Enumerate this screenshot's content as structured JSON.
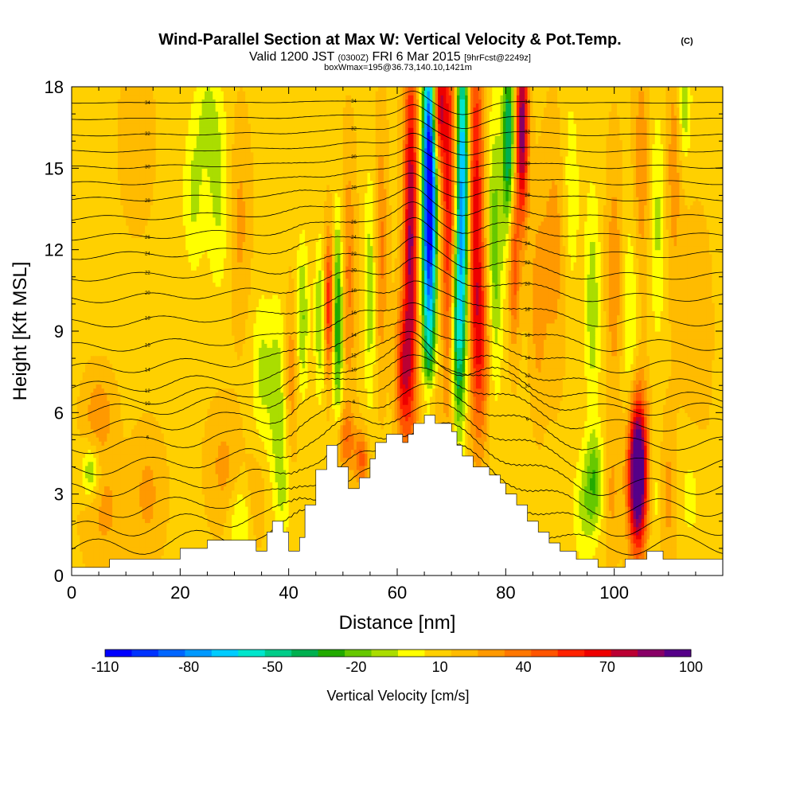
{
  "chart_data": {
    "type": "heatmap",
    "title": "Wind-Parallel Section at Max W: Vertical Velocity & Pot.Temp.",
    "title_mark": "(C)",
    "subtitle": {
      "prefix": "Valid 1200 JST",
      "utc": "(0300Z)",
      "date": "FRI 6 Mar 2015",
      "fcst": "[9hrFcst@2249z]"
    },
    "subtitle2": "boxWmax=195@36.73,140.10,1421m",
    "xlabel": "Distance [nm]",
    "ylabel": "Height [Kft MSL]",
    "xlim": [
      0,
      120
    ],
    "ylim": [
      0,
      18
    ],
    "x_ticks": [
      "0",
      "20",
      "40",
      "60",
      "80",
      "100"
    ],
    "x_tick_values": [
      0,
      20,
      40,
      60,
      80,
      100
    ],
    "y_ticks": [
      "0",
      "3",
      "6",
      "9",
      "12",
      "15",
      "18"
    ],
    "y_tick_values": [
      0,
      3,
      6,
      9,
      12,
      15,
      18
    ],
    "colorbar": {
      "label": "Vertical Velocity [cm/s]",
      "min": -110,
      "max": 100,
      "step": 10,
      "tick_labels": [
        "-110",
        "-80",
        "-50",
        "-20",
        "10",
        "40",
        "70",
        "100"
      ],
      "tick_values": [
        -110,
        -80,
        -50,
        -20,
        10,
        40,
        70,
        100
      ],
      "colors": [
        "#0000ff",
        "#0033ff",
        "#0066ff",
        "#0099ff",
        "#00ccff",
        "#00e6cc",
        "#00cc88",
        "#00b050",
        "#22aa00",
        "#66c800",
        "#aadd00",
        "#ffff00",
        "#ffd000",
        "#ffbb00",
        "#ff9900",
        "#ff7700",
        "#ff5500",
        "#ff2200",
        "#ee0000",
        "#bb0033",
        "#880066",
        "#550088"
      ]
    },
    "terrain_kft": [
      [
        0,
        0.3
      ],
      [
        7,
        0.3
      ],
      [
        7,
        0.6
      ],
      [
        20,
        0.6
      ],
      [
        20,
        1.0
      ],
      [
        25,
        1.0
      ],
      [
        25,
        1.3
      ],
      [
        34,
        1.3
      ],
      [
        34,
        0.9
      ],
      [
        36,
        0.9
      ],
      [
        36,
        1.6
      ],
      [
        37,
        1.6
      ],
      [
        37,
        2.0
      ],
      [
        39,
        2.0
      ],
      [
        39,
        1.6
      ],
      [
        40,
        1.6
      ],
      [
        40,
        0.9
      ],
      [
        42,
        0.9
      ],
      [
        42,
        1.4
      ],
      [
        43,
        1.4
      ],
      [
        43,
        2.6
      ],
      [
        45,
        2.6
      ],
      [
        45,
        3.9
      ],
      [
        47,
        3.9
      ],
      [
        47,
        4.8
      ],
      [
        49,
        4.8
      ],
      [
        49,
        4.0
      ],
      [
        51,
        4.0
      ],
      [
        51,
        3.2
      ],
      [
        53,
        3.2
      ],
      [
        53,
        3.6
      ],
      [
        55,
        3.6
      ],
      [
        55,
        4.3
      ],
      [
        56,
        4.3
      ],
      [
        56,
        4.9
      ],
      [
        58,
        4.9
      ],
      [
        58,
        5.2
      ],
      [
        61,
        5.2
      ],
      [
        61,
        4.9
      ],
      [
        62,
        4.9
      ],
      [
        62,
        5.2
      ],
      [
        63,
        5.2
      ],
      [
        63,
        5.6
      ],
      [
        65,
        5.6
      ],
      [
        65,
        5.9
      ],
      [
        67,
        5.9
      ],
      [
        67,
        5.6
      ],
      [
        70,
        5.6
      ],
      [
        70,
        5.3
      ],
      [
        71,
        5.3
      ],
      [
        71,
        4.8
      ],
      [
        72,
        4.8
      ],
      [
        72,
        4.4
      ],
      [
        74,
        4.4
      ],
      [
        74,
        4.0
      ],
      [
        77,
        4.0
      ],
      [
        77,
        3.7
      ],
      [
        79,
        3.7
      ],
      [
        79,
        3.4
      ],
      [
        80,
        3.4
      ],
      [
        80,
        3.0
      ],
      [
        82,
        3.0
      ],
      [
        82,
        2.6
      ],
      [
        84,
        2.6
      ],
      [
        84,
        2.0
      ],
      [
        86,
        2.0
      ],
      [
        86,
        1.6
      ],
      [
        88,
        1.6
      ],
      [
        88,
        1.2
      ],
      [
        90,
        1.2
      ],
      [
        90,
        0.9
      ],
      [
        93,
        0.9
      ],
      [
        93,
        0.6
      ],
      [
        97,
        0.6
      ],
      [
        97,
        0.3
      ],
      [
        102,
        0.3
      ],
      [
        102,
        0.6
      ],
      [
        106,
        0.6
      ],
      [
        106,
        0.9
      ],
      [
        109,
        0.9
      ],
      [
        109,
        0.6
      ],
      [
        120,
        0.6
      ]
    ],
    "velocity_features": [
      {
        "x": 104.3,
        "y": 3.8,
        "sx": 1.2,
        "sy": 1.9,
        "w": 125
      },
      {
        "x": 62.5,
        "y": 12.5,
        "sx": 0.9,
        "sy": 5.0,
        "w": 75
      },
      {
        "x": 61.0,
        "y": 7.5,
        "sx": 0.9,
        "sy": 1.8,
        "w": 50
      },
      {
        "x": 66.0,
        "y": 15.5,
        "sx": 0.9,
        "sy": 3.5,
        "w": -120
      },
      {
        "x": 67.5,
        "y": 17.3,
        "sx": 0.9,
        "sy": 1.5,
        "w": 70
      },
      {
        "x": 65.8,
        "y": 10.5,
        "sx": 0.9,
        "sy": 3.5,
        "w": -60
      },
      {
        "x": 69.5,
        "y": 14.0,
        "sx": 1.0,
        "sy": 5.0,
        "w": 55
      },
      {
        "x": 72.0,
        "y": 14.5,
        "sx": 0.8,
        "sy": 4.5,
        "w": -95
      },
      {
        "x": 71.0,
        "y": 9.0,
        "sx": 0.8,
        "sy": 2.5,
        "w": -55
      },
      {
        "x": 74.5,
        "y": 14.0,
        "sx": 1.0,
        "sy": 5.0,
        "w": 55
      },
      {
        "x": 75.5,
        "y": 8.5,
        "sx": 1.2,
        "sy": 2.5,
        "w": 35
      },
      {
        "x": 78.0,
        "y": 12.0,
        "sx": 1.0,
        "sy": 3.5,
        "w": -35
      },
      {
        "x": 80.5,
        "y": 16.0,
        "sx": 0.8,
        "sy": 2.5,
        "w": -60
      },
      {
        "x": 83.0,
        "y": 16.5,
        "sx": 0.8,
        "sy": 2.5,
        "w": 80
      },
      {
        "x": 81.5,
        "y": 11.5,
        "sx": 0.7,
        "sy": 2.0,
        "w": 40
      },
      {
        "x": 47.5,
        "y": 10.0,
        "sx": 0.7,
        "sy": 1.8,
        "w": 55
      },
      {
        "x": 49.0,
        "y": 9.5,
        "sx": 0.7,
        "sy": 2.5,
        "w": -55
      },
      {
        "x": 45.8,
        "y": 9.5,
        "sx": 0.7,
        "sy": 2.0,
        "w": -30
      },
      {
        "x": 51.0,
        "y": 11.0,
        "sx": 0.9,
        "sy": 3.0,
        "w": 25
      },
      {
        "x": 55.0,
        "y": 10.5,
        "sx": 0.8,
        "sy": 3.0,
        "w": -25
      },
      {
        "x": 57.0,
        "y": 12.0,
        "sx": 0.8,
        "sy": 3.0,
        "w": 25
      },
      {
        "x": 42.5,
        "y": 9.5,
        "sx": 0.8,
        "sy": 2.0,
        "w": -30
      },
      {
        "x": 40.5,
        "y": 7.5,
        "sx": 0.9,
        "sy": 2.0,
        "w": 20
      },
      {
        "x": 38.0,
        "y": 6.5,
        "sx": 1.2,
        "sy": 2.5,
        "w": -25
      },
      {
        "x": 35.0,
        "y": 7.5,
        "sx": 1.3,
        "sy": 2.0,
        "w": -20
      },
      {
        "x": 27.0,
        "y": 14.0,
        "sx": 1.5,
        "sy": 2.5,
        "w": -20
      },
      {
        "x": 31.0,
        "y": 13.0,
        "sx": 1.3,
        "sy": 2.5,
        "w": 15
      },
      {
        "x": 22.5,
        "y": 14.0,
        "sx": 1.4,
        "sy": 2.0,
        "w": -20
      },
      {
        "x": 25.0,
        "y": 17.0,
        "sx": 1.5,
        "sy": 1.5,
        "w": -18
      },
      {
        "x": 3.5,
        "y": 3.8,
        "sx": 1.2,
        "sy": 0.7,
        "w": -30
      },
      {
        "x": 5.0,
        "y": 6.0,
        "sx": 1.8,
        "sy": 1.0,
        "w": 20
      },
      {
        "x": 6.0,
        "y": 2.5,
        "sx": 2.5,
        "sy": 1.5,
        "w": 15
      },
      {
        "x": 14.0,
        "y": 3.0,
        "sx": 2.0,
        "sy": 1.5,
        "w": 15
      },
      {
        "x": 28.0,
        "y": 4.0,
        "sx": 2.0,
        "sy": 1.5,
        "w": 15
      },
      {
        "x": 31.0,
        "y": 2.0,
        "sx": 1.5,
        "sy": 1.0,
        "w": -20
      },
      {
        "x": 34.0,
        "y": 3.0,
        "sx": 1.2,
        "sy": 1.2,
        "w": 12
      },
      {
        "x": 39.0,
        "y": 3.0,
        "sx": 1.0,
        "sy": 1.2,
        "w": -15
      },
      {
        "x": 50.5,
        "y": 5.0,
        "sx": 1.2,
        "sy": 0.8,
        "w": 30
      },
      {
        "x": 53.5,
        "y": 4.3,
        "sx": 0.9,
        "sy": 0.7,
        "w": 35
      },
      {
        "x": 66.0,
        "y": 6.5,
        "sx": 1.2,
        "sy": 0.7,
        "w": 25
      },
      {
        "x": 96.5,
        "y": 3.5,
        "sx": 1.2,
        "sy": 1.2,
        "w": -30
      },
      {
        "x": 94.5,
        "y": 2.5,
        "sx": 1.5,
        "sy": 1.5,
        "w": -20
      },
      {
        "x": 99.5,
        "y": 3.0,
        "sx": 1.0,
        "sy": 1.5,
        "w": 15
      },
      {
        "x": 107.5,
        "y": 3.0,
        "sx": 0.8,
        "sy": 1.8,
        "w": -12
      },
      {
        "x": 110.0,
        "y": 3.0,
        "sx": 1.0,
        "sy": 2.0,
        "w": 15
      },
      {
        "x": 114.0,
        "y": 3.0,
        "sx": 1.5,
        "sy": 1.5,
        "w": -12
      },
      {
        "x": 96.0,
        "y": 10.0,
        "sx": 1.0,
        "sy": 3.0,
        "w": -25
      },
      {
        "x": 100.0,
        "y": 11.0,
        "sx": 1.0,
        "sy": 3.0,
        "w": 20
      },
      {
        "x": 103.0,
        "y": 9.0,
        "sx": 1.0,
        "sy": 3.0,
        "w": -20
      },
      {
        "x": 105.0,
        "y": 15.0,
        "sx": 1.0,
        "sy": 3.0,
        "w": 20
      },
      {
        "x": 108.0,
        "y": 13.0,
        "sx": 1.0,
        "sy": 3.0,
        "w": -20
      },
      {
        "x": 111.0,
        "y": 15.0,
        "sx": 1.0,
        "sy": 3.0,
        "w": 18
      },
      {
        "x": 113.0,
        "y": 17.5,
        "sx": 0.8,
        "sy": 1.5,
        "w": -28
      },
      {
        "x": 89.0,
        "y": 12.0,
        "sx": 1.5,
        "sy": 3.0,
        "w": 18
      },
      {
        "x": 92.0,
        "y": 14.0,
        "sx": 1.2,
        "sy": 3.0,
        "w": -15
      },
      {
        "x": 86.0,
        "y": 10.0,
        "sx": 1.0,
        "sy": 2.5,
        "w": 18
      },
      {
        "x": 12.0,
        "y": 16.0,
        "sx": 2.0,
        "sy": 2.0,
        "w": 10
      },
      {
        "x": 115.0,
        "y": 9.0,
        "sx": 2.0,
        "sy": 3.0,
        "w": 8
      }
    ],
    "theta_levels": [
      {
        "base": 0.8,
        "label": ""
      },
      {
        "base": 1.5,
        "label": ""
      },
      {
        "base": 2.2,
        "label": ""
      },
      {
        "base": 3.0,
        "label": ""
      },
      {
        "base": 3.8,
        "label": ""
      },
      {
        "base": 4.6,
        "label": "6"
      },
      {
        "base": 5.3,
        "label": ""
      },
      {
        "base": 5.9,
        "label": ""
      },
      {
        "base": 6.3,
        "label": "10"
      },
      {
        "base": 6.8,
        "label": "12"
      },
      {
        "base": 7.5,
        "label": "14"
      },
      {
        "base": 8.3,
        "label": "16"
      },
      {
        "base": 9.2,
        "label": "18"
      },
      {
        "base": 10.1,
        "label": "20"
      },
      {
        "base": 10.9,
        "label": "22"
      },
      {
        "base": 11.7,
        "label": "24"
      },
      {
        "base": 12.4,
        "label": "26"
      },
      {
        "base": 13.1,
        "label": ""
      },
      {
        "base": 13.8,
        "label": "28"
      },
      {
        "base": 14.4,
        "label": ""
      },
      {
        "base": 15.0,
        "label": "30"
      },
      {
        "base": 15.6,
        "label": ""
      },
      {
        "base": 16.2,
        "label": "32"
      },
      {
        "base": 16.8,
        "label": ""
      },
      {
        "base": 17.4,
        "label": "34"
      }
    ]
  }
}
